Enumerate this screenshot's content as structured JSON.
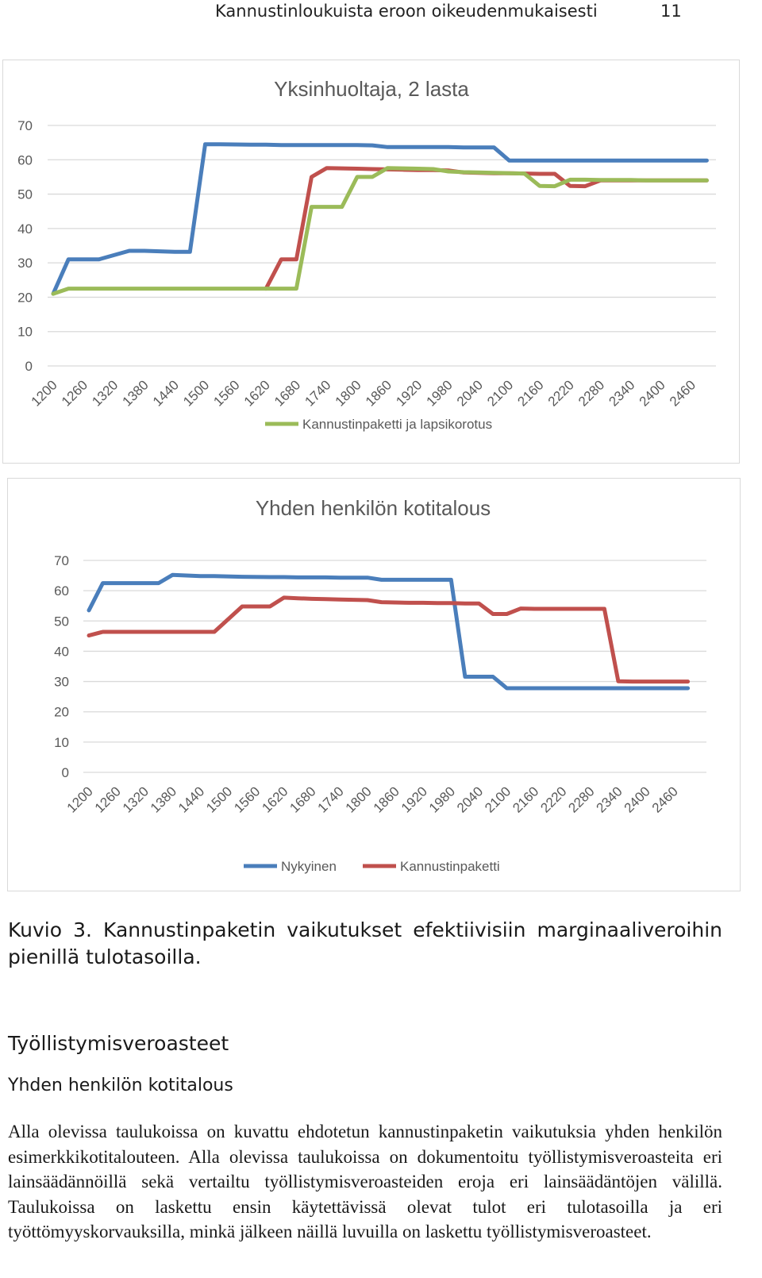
{
  "header": {
    "running_title": "Kannustinloukuista eroon oikeudenmukaisesti",
    "page_number": "11"
  },
  "chart_data": [
    {
      "type": "line",
      "title": "Yksinhuoltaja, 2 lasta",
      "categories": [
        "1200",
        "1260",
        "1320",
        "1380",
        "1440",
        "1500",
        "1560",
        "1620",
        "1680",
        "1740",
        "1800",
        "1860",
        "1920",
        "1980",
        "2040",
        "2100",
        "2160",
        "2220",
        "2280",
        "2340",
        "2400",
        "2460"
      ],
      "x": [
        1200,
        1230,
        1290,
        1350,
        1380,
        1440,
        1470,
        1500,
        1530,
        1590,
        1620,
        1650,
        1680,
        1710,
        1740,
        1770,
        1800,
        1830,
        1860,
        1890,
        1920,
        1950,
        1980,
        2010,
        2040,
        2070,
        2100,
        2130,
        2160,
        2190,
        2220,
        2250,
        2280,
        2310,
        2340,
        2370,
        2400,
        2430,
        2460,
        2490
      ],
      "ylim": [
        0,
        70
      ],
      "yticks": [
        0,
        10,
        20,
        30,
        40,
        50,
        60,
        70
      ],
      "grid": true,
      "legend": "bottom",
      "series": [
        {
          "name": "",
          "color": "#4a7ebb",
          "values": [
            21,
            31,
            31,
            33.5,
            33.5,
            33.2,
            33.2,
            64.5,
            64.5,
            64.4,
            64.4,
            64.3,
            64.3,
            64.3,
            64.3,
            64.3,
            64.3,
            64.2,
            63.7,
            63.7,
            63.7,
            63.7,
            63.7,
            63.6,
            63.6,
            63.6,
            59.8,
            59.8,
            59.8,
            59.8,
            59.8,
            59.8,
            59.8,
            59.8,
            59.8,
            59.8,
            59.8,
            59.8,
            59.8,
            59.8
          ]
        },
        {
          "name": "",
          "color": "#c0504d",
          "values": [
            null,
            null,
            null,
            null,
            null,
            null,
            null,
            null,
            null,
            null,
            22.5,
            31,
            31,
            55,
            57.6,
            57.5,
            57.4,
            57.3,
            57.2,
            57.1,
            57.0,
            57.0,
            56.9,
            56.3,
            56.2,
            56.1,
            56.1,
            56.0,
            55.9,
            55.9,
            52.4,
            52.3,
            54.0,
            54.0,
            54.0,
            54.0,
            54.0,
            54.0,
            54.0,
            54.0
          ]
        },
        {
          "name": "Kannustinpaketti ja lapsikorotus",
          "color": "#9bbb59",
          "values": [
            21,
            22.5,
            22.5,
            22.5,
            22.5,
            22.5,
            22.5,
            22.5,
            22.5,
            22.5,
            22.5,
            22.5,
            22.5,
            46.3,
            46.3,
            46.3,
            55,
            55,
            57.6,
            57.5,
            57.4,
            57.3,
            56.6,
            56.4,
            56.3,
            56.2,
            56.1,
            56.0,
            52.4,
            52.3,
            54.2,
            54.2,
            54.1,
            54.1,
            54.1,
            54.0,
            54.0,
            54.0,
            54.0,
            54.0
          ]
        }
      ]
    },
    {
      "type": "line",
      "title": "Yhden henkilön kotitalous",
      "categories": [
        "1200",
        "1260",
        "1320",
        "1380",
        "1440",
        "1500",
        "1560",
        "1620",
        "1680",
        "1740",
        "1800",
        "1860",
        "1920",
        "1980",
        "2040",
        "2100",
        "2160",
        "2220",
        "2280",
        "2340",
        "2400",
        "2460"
      ],
      "x": [
        1200,
        1230,
        1290,
        1350,
        1380,
        1440,
        1470,
        1530,
        1590,
        1620,
        1650,
        1680,
        1710,
        1740,
        1770,
        1800,
        1830,
        1860,
        1890,
        1920,
        1950,
        1980,
        2010,
        2040,
        2070,
        2100,
        2130,
        2160,
        2190,
        2220,
        2250,
        2280,
        2310,
        2340,
        2370,
        2400,
        2430,
        2460,
        2490
      ],
      "ylim": [
        0,
        70
      ],
      "yticks": [
        0,
        10,
        20,
        30,
        40,
        50,
        60,
        70
      ],
      "grid": true,
      "legend": "bottom",
      "series": [
        {
          "name": "Nykyinen",
          "color": "#4a7ebb",
          "values": [
            53.5,
            62.5,
            62.5,
            62.5,
            65.2,
            64.8,
            64.8,
            64.6,
            64.5,
            64.5,
            64.4,
            64.4,
            64.4,
            64.3,
            64.3,
            64.3,
            63.6,
            63.6,
            63.6,
            63.6,
            63.6,
            63.6,
            31.6,
            31.6,
            31.6,
            27.8,
            27.8,
            27.8,
            27.8,
            27.8,
            27.8,
            27.8,
            27.8,
            27.8,
            27.8,
            27.8,
            27.8,
            27.8,
            27.8
          ]
        },
        {
          "name": "Kannustinpaketti",
          "color": "#c0504d",
          "values": [
            45.2,
            46.4,
            46.4,
            46.4,
            46.4,
            46.4,
            46.4,
            54.8,
            54.8,
            57.7,
            57.5,
            57.3,
            57.2,
            57.1,
            57.0,
            56.9,
            56.2,
            56.1,
            56.0,
            56.0,
            55.9,
            55.9,
            55.8,
            55.8,
            52.3,
            52.3,
            54.1,
            54.0,
            54.0,
            54.0,
            54.0,
            54.0,
            54.0,
            30.1,
            30.0,
            30.0,
            30.0,
            30.0,
            30.0
          ]
        }
      ]
    }
  ],
  "caption": "Kuvio 3. Kannustinpaketin vaikutukset efektiivisiin marginaaliveroihin pienillä tulotasoilla.",
  "section_heading": "Työllistymisveroasteet",
  "subsection_heading": "Yhden henkilön kotitalous",
  "paragraph": "Alla olevissa taulukoissa on kuvattu ehdotetun kannustinpaketin vaikutuksia yhden henkilön esimerkkikotitalouteen. Alla olevissa taulukoissa on dokumentoitu työl­listymisveroasteita eri lainsäädännöillä sekä vertailtu työllistymisveroasteiden eroja eri lainsäädäntöjen välillä. Taulukoissa on laskettu ensin käytettävissä olevat tulot eri tulotasoilla ja eri työttömyyskorvauksilla, minkä jälkeen näillä luvuilla on las­kettu työllistymisveroasteet."
}
